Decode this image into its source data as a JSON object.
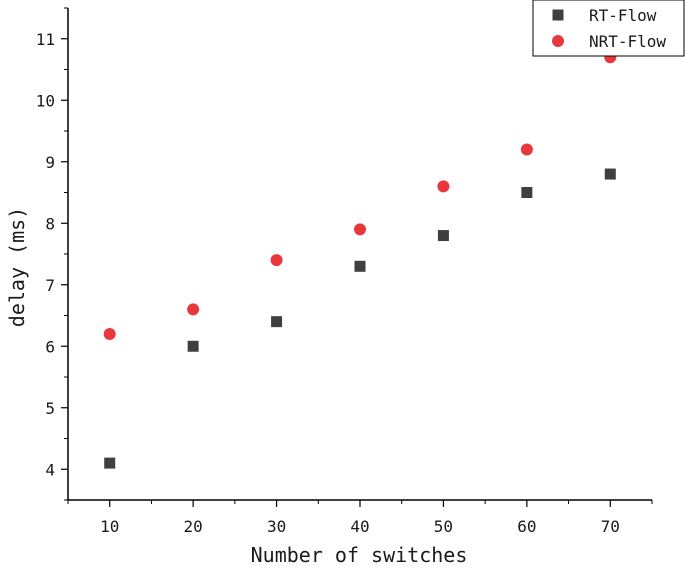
{
  "chart_data": {
    "type": "scatter",
    "title": "",
    "xlabel": "Number of switches",
    "ylabel": "delay (ms)",
    "xlim": [
      5,
      75
    ],
    "ylim": [
      3.5,
      11.5
    ],
    "xticks": [
      10,
      20,
      30,
      40,
      50,
      60,
      70
    ],
    "yticks": [
      4,
      5,
      6,
      7,
      8,
      9,
      10,
      11
    ],
    "grid": false,
    "legend_position": "top-right",
    "series": [
      {
        "name": "RT-Flow",
        "marker": "square",
        "color": "#3f3f3f",
        "x": [
          10,
          20,
          30,
          40,
          50,
          60,
          70
        ],
        "y": [
          4.1,
          6.0,
          6.4,
          7.3,
          7.8,
          8.5,
          8.8
        ]
      },
      {
        "name": "NRT-Flow",
        "marker": "circle",
        "color": "#e8383d",
        "x": [
          10,
          20,
          30,
          40,
          50,
          60,
          70
        ],
        "y": [
          6.2,
          6.6,
          7.4,
          7.9,
          8.6,
          9.2,
          10.7
        ]
      }
    ]
  }
}
